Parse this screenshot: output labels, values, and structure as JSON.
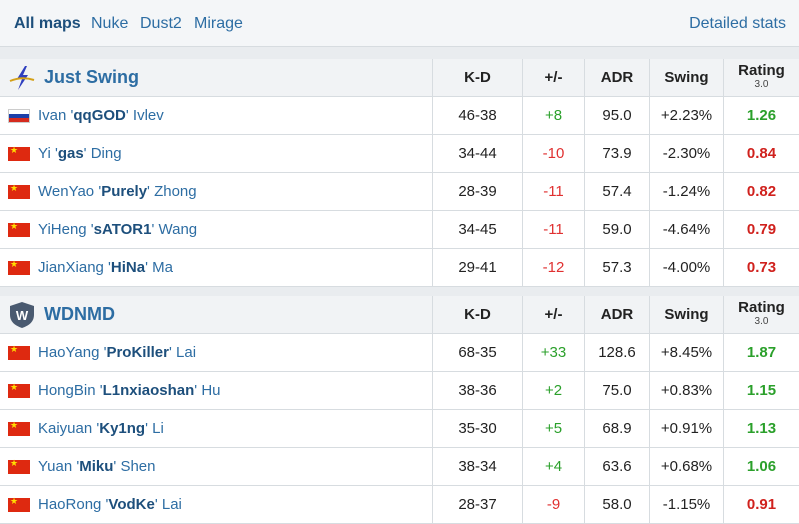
{
  "tabs": {
    "all": "All maps",
    "nuke": "Nuke",
    "dust2": "Dust2",
    "mirage": "Mirage",
    "detailed": "Detailed stats"
  },
  "headers": {
    "kd": "K-D",
    "pm": "+/-",
    "adr": "ADR",
    "swing": "Swing",
    "rating": "Rating",
    "rating_sub": "3.0"
  },
  "teams": [
    {
      "name": "Just Swing",
      "players": [
        {
          "first": "Ivan '",
          "nick": "qqGOD",
          "last": "' Ivlev",
          "kd": "46-38",
          "pm": "+8",
          "adr": "95.0",
          "swing": "+2.23%",
          "rating": "1.26",
          "flag": "ru"
        },
        {
          "first": "Yi '",
          "nick": "gas",
          "last": "' Ding",
          "kd": "34-44",
          "pm": "-10",
          "adr": "73.9",
          "swing": "-2.30%",
          "rating": "0.84",
          "flag": "cn"
        },
        {
          "first": "WenYao '",
          "nick": "Purely",
          "last": "' Zhong",
          "kd": "28-39",
          "pm": "-11",
          "adr": "57.4",
          "swing": "-1.24%",
          "rating": "0.82",
          "flag": "cn"
        },
        {
          "first": "YiHeng '",
          "nick": "sATOR1",
          "last": "' Wang",
          "kd": "34-45",
          "pm": "-11",
          "adr": "59.0",
          "swing": "-4.64%",
          "rating": "0.79",
          "flag": "cn"
        },
        {
          "first": "JianXiang '",
          "nick": "HiNa",
          "last": "' Ma",
          "kd": "29-41",
          "pm": "-12",
          "adr": "57.3",
          "swing": "-4.00%",
          "rating": "0.73",
          "flag": "cn"
        }
      ]
    },
    {
      "name": "WDNMD",
      "players": [
        {
          "first": "HaoYang '",
          "nick": "ProKiller",
          "last": "' Lai",
          "kd": "68-35",
          "pm": "+33",
          "adr": "128.6",
          "swing": "+8.45%",
          "rating": "1.87",
          "flag": "cn"
        },
        {
          "first": "HongBin '",
          "nick": "L1nxiaoshan",
          "last": "' Hu",
          "kd": "38-36",
          "pm": "+2",
          "adr": "75.0",
          "swing": "+0.83%",
          "rating": "1.15",
          "flag": "cn"
        },
        {
          "first": "Kaiyuan '",
          "nick": "Ky1ng",
          "last": "' Li",
          "kd": "35-30",
          "pm": "+5",
          "adr": "68.9",
          "swing": "+0.91%",
          "rating": "1.13",
          "flag": "cn"
        },
        {
          "first": "Yuan '",
          "nick": "Miku",
          "last": "' Shen",
          "kd": "38-34",
          "pm": "+4",
          "adr": "63.6",
          "swing": "+0.68%",
          "rating": "1.06",
          "flag": "cn"
        },
        {
          "first": "HaoRong '",
          "nick": "VodKe",
          "last": "' Lai",
          "kd": "28-37",
          "pm": "-9",
          "adr": "58.0",
          "swing": "-1.15%",
          "rating": "0.91",
          "flag": "cn"
        }
      ]
    }
  ],
  "colors": {
    "link": "#2d6da3",
    "positive": "#2ba02b",
    "negative": "#e03030"
  }
}
